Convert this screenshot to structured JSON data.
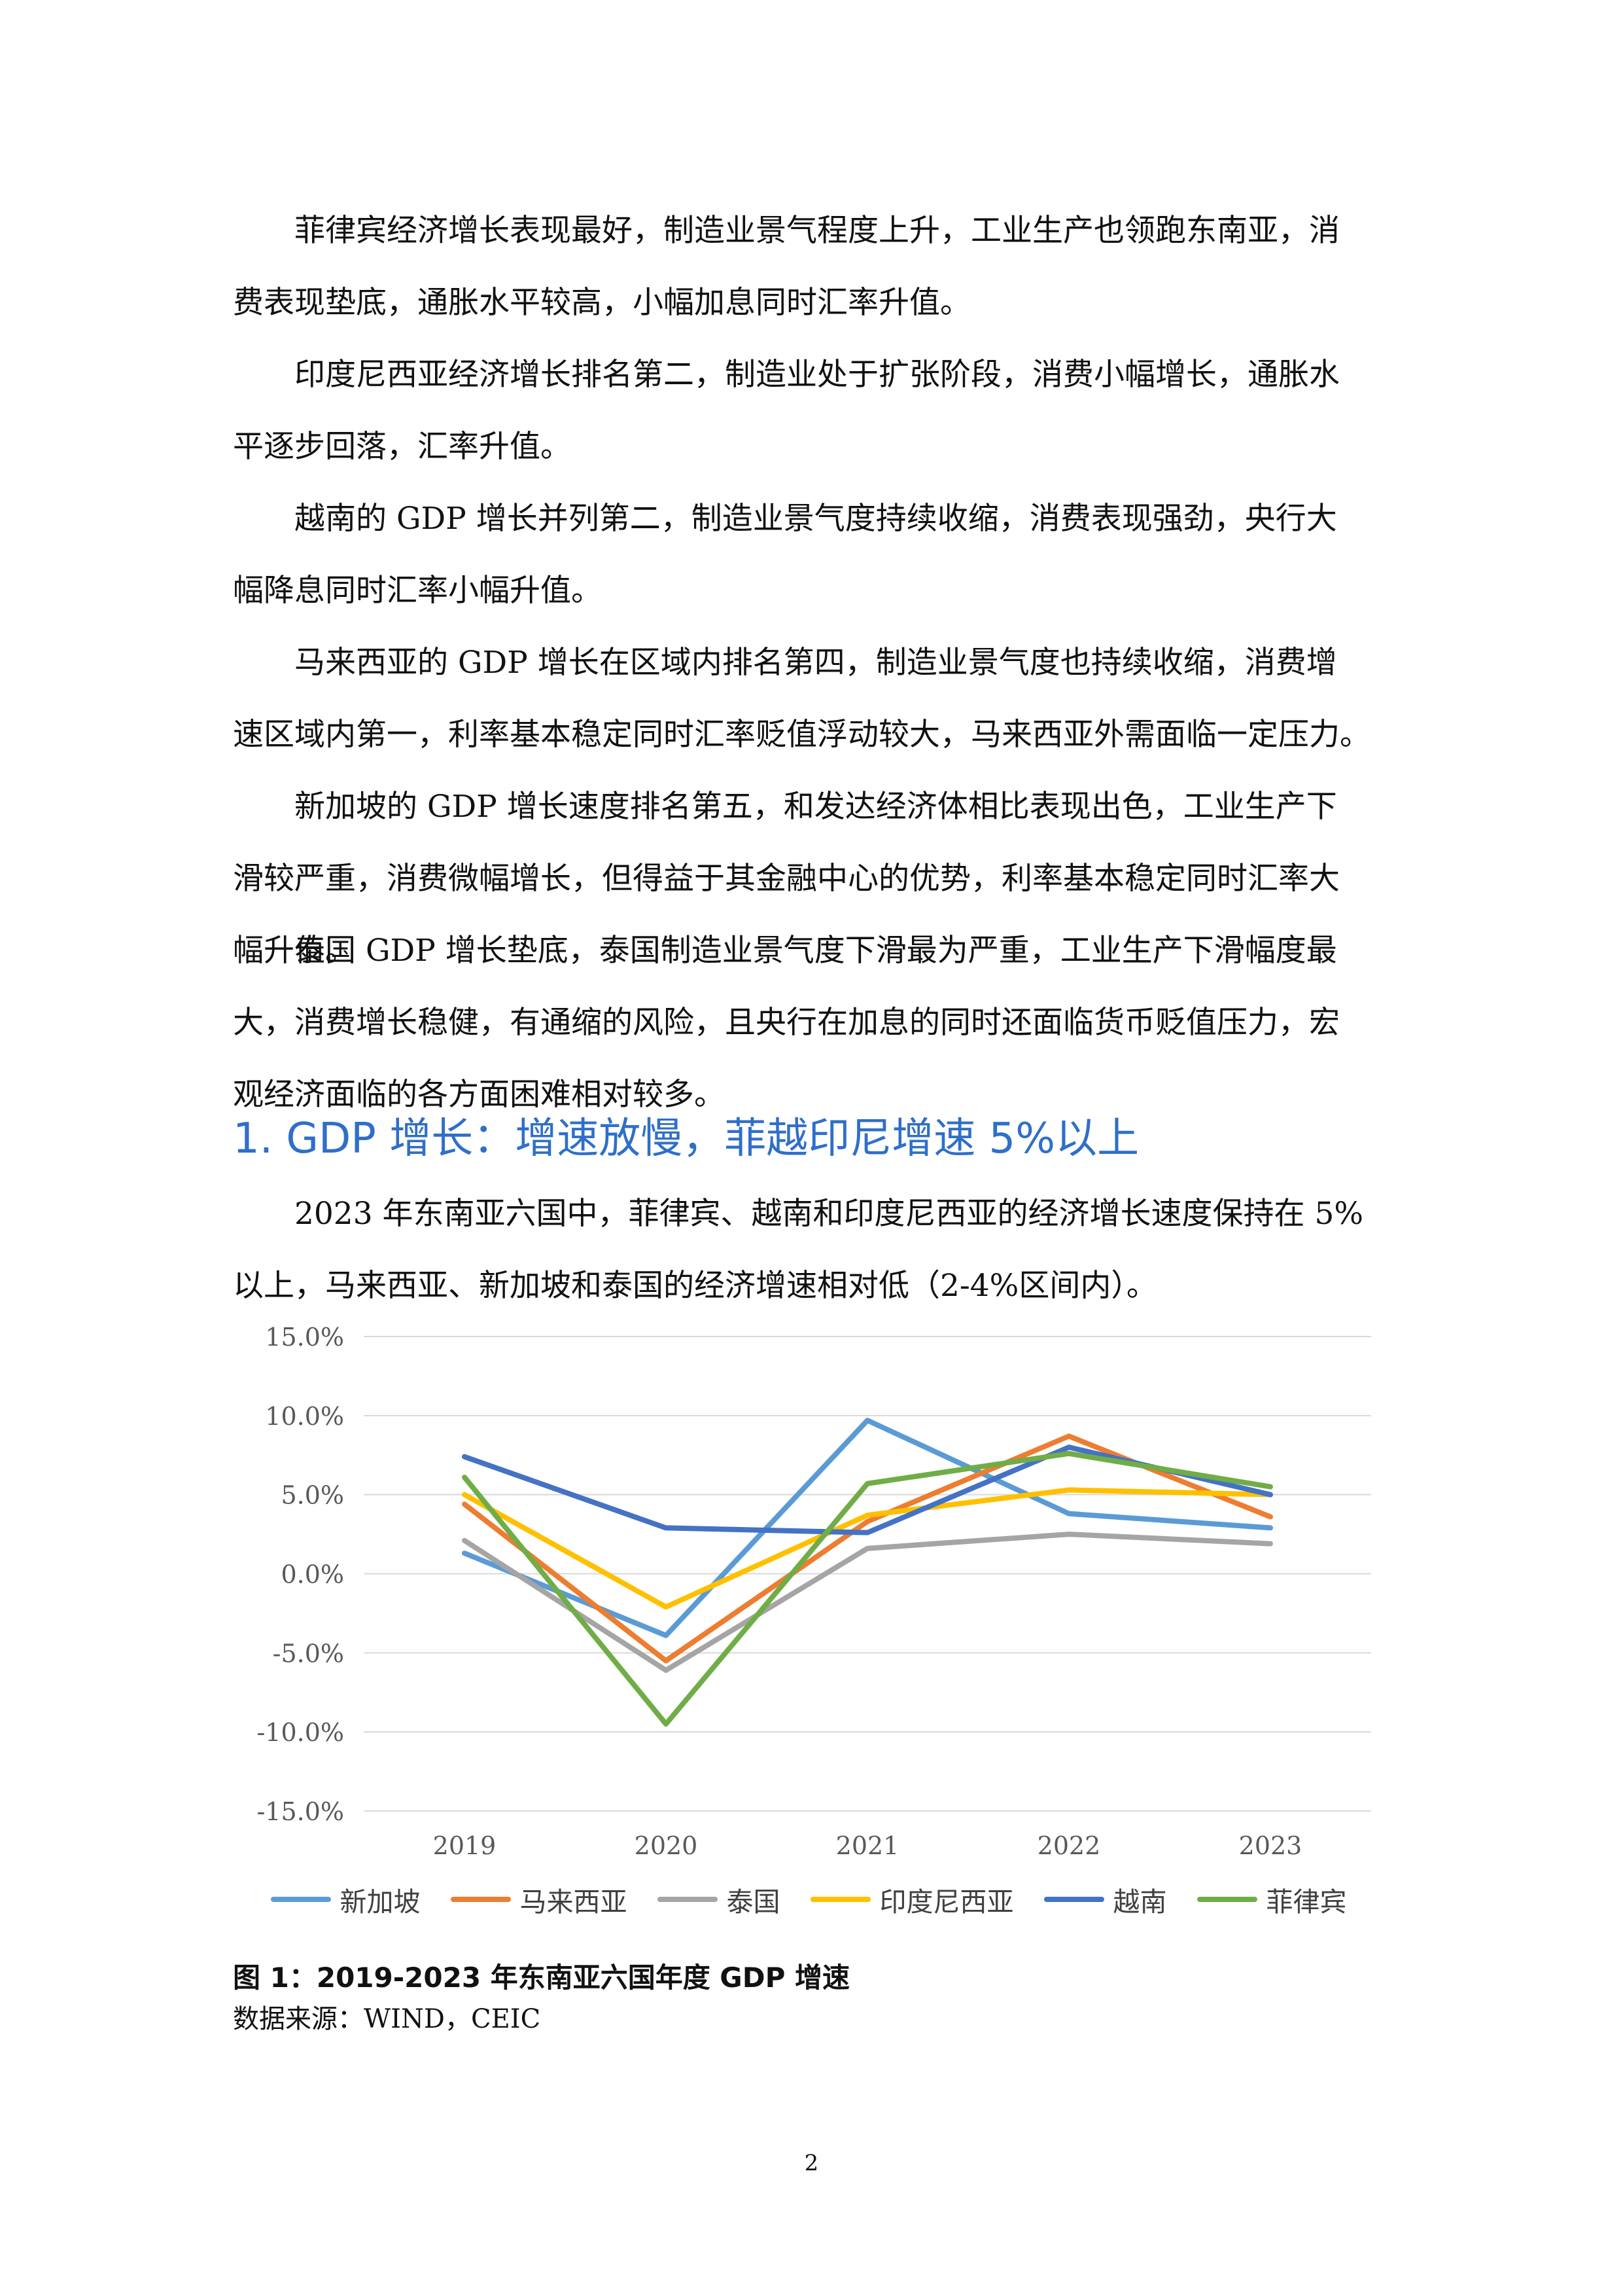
{
  "paragraphs": [
    {
      "line1": "菲律宾经济增长表现最好，制造业景气程度上升，工业生产也领跑东南亚，消",
      "line2": "费表现垫底，通胀水平较高，小幅加息同时汇率升值。"
    },
    {
      "line1": "印度尼西亚经济增长排名第二，制造业处于扩张阶段，消费小幅增长，通胀水",
      "line2": "平逐步回落，汇率升值。"
    },
    {
      "line1": "越南的 GDP 增长并列第二，制造业景气度持续收缩，消费表现强劲，央行大",
      "line2": "幅降息同时汇率小幅升值。"
    },
    {
      "line1": "马来西亚的 GDP 增长在区域内排名第四，制造业景气度也持续收缩，消费增",
      "line2": "速区域内第一，利率基本稳定同时汇率贬值浮动较大，马来西亚外需面临一定压力。"
    },
    {
      "line1": "新加坡的 GDP 增长速度排名第五，和发达经济体相比表现出色，工业生产下",
      "line2": "滑较严重，消费微幅增长，但得益于其金融中心的优势，利率基本稳定同时汇率大",
      "line3": "幅升值。"
    },
    {
      "line1": "泰国 GDP 增长垫底，泰国制造业景气度下滑最为严重，工业生产下滑幅度最",
      "line2": "大，消费增长稳健，有通缩的风险，且央行在加息的同时还面临货币贬值压力，宏",
      "line3": "观经济面临的各方面困难相对较多。"
    }
  ],
  "section_heading": "1. GDP 增长：增速放慢，菲越印尼增速 5%以上",
  "intro": {
    "line1": "2023 年东南亚六国中，菲律宾、越南和印度尼西亚的经济增长速度保持在 5%",
    "line2": "以上，马来西亚、新加坡和泰国的经济增速相对低（2-4%区间内）。"
  },
  "chart_data": {
    "type": "line",
    "title": "",
    "xlabel": "",
    "ylabel": "",
    "x": [
      "2019",
      "2020",
      "2021",
      "2022",
      "2023"
    ],
    "ylim": [
      -15,
      15
    ],
    "yticks": [
      "15.0%",
      "10.0%",
      "5.0%",
      "0.0%",
      "-5.0%",
      "-10.0%",
      "-15.0%"
    ],
    "grid": true,
    "legend_position": "bottom",
    "series": [
      {
        "name": "新加坡",
        "color": "#5b9bd5",
        "values": [
          1.3,
          -3.9,
          9.7,
          3.8,
          2.9
        ]
      },
      {
        "name": "马来西亚",
        "color": "#ed7d31",
        "values": [
          4.4,
          -5.5,
          3.3,
          8.7,
          3.6
        ]
      },
      {
        "name": "泰国",
        "color": "#a5a5a5",
        "values": [
          2.1,
          -6.1,
          1.6,
          2.5,
          1.9
        ]
      },
      {
        "name": "印度尼西亚",
        "color": "#ffc000",
        "values": [
          5.0,
          -2.1,
          3.7,
          5.3,
          5.0
        ]
      },
      {
        "name": "越南",
        "color": "#4472c4",
        "values": [
          7.4,
          2.9,
          2.6,
          8.0,
          5.0
        ]
      },
      {
        "name": "菲律宾",
        "color": "#70ad47",
        "values": [
          6.1,
          -9.5,
          5.7,
          7.6,
          5.5
        ]
      }
    ]
  },
  "caption": "图 1：2019-2023 年东南亚六国年度 GDP 增速",
  "source": "数据来源：WIND，CEIC",
  "page_number": "2"
}
